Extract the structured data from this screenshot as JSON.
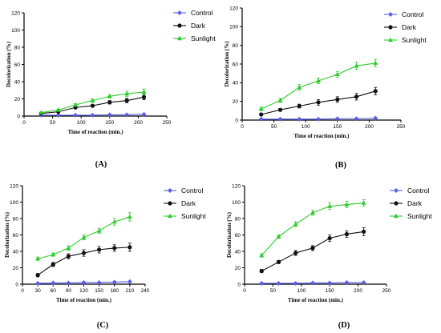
{
  "colors": {
    "control": "#5a5cf0",
    "dark": "#111111",
    "sunlight": "#2ecc2e"
  },
  "chart_data": [
    {
      "type": "line",
      "label": "(A)",
      "xlabel": "Time of reaction (min.)",
      "ylabel": "Decolorization (%)",
      "xlim": [
        0,
        250
      ],
      "ylim": [
        0,
        120
      ],
      "xticks": [
        0,
        50,
        100,
        150,
        200,
        250
      ],
      "yticks": [
        0,
        20,
        40,
        60,
        80,
        100,
        120
      ],
      "x": [
        30,
        60,
        90,
        120,
        150,
        180,
        210
      ],
      "legend_position": "right",
      "series": [
        {
          "name": "Control",
          "values": [
            1,
            1,
            1,
            1,
            1.5,
            1.5,
            2
          ],
          "errors": [
            0.3,
            0.3,
            0.3,
            0.3,
            0.3,
            0.3,
            0.5
          ]
        },
        {
          "name": "Dark",
          "values": [
            3,
            5,
            10,
            12,
            16,
            18,
            22
          ],
          "errors": [
            0.8,
            1,
            1.5,
            1.5,
            2,
            2.5,
            3
          ]
        },
        {
          "name": "Sunlight",
          "values": [
            4,
            7,
            13,
            18,
            23,
            26,
            28
          ],
          "errors": [
            1,
            1,
            1.5,
            2,
            2,
            3,
            3.5
          ]
        }
      ]
    },
    {
      "type": "line",
      "label": "(B)",
      "xlabel": "Time of reaction (min.)",
      "ylabel": "Decolorization (%)",
      "xlim": [
        0,
        250
      ],
      "ylim": [
        0,
        120
      ],
      "xticks": [
        0,
        50,
        100,
        150,
        200,
        250
      ],
      "yticks": [
        0,
        20,
        40,
        60,
        80,
        100,
        120
      ],
      "x": [
        30,
        60,
        90,
        120,
        150,
        180,
        210
      ],
      "legend_position": "right",
      "series": [
        {
          "name": "Control",
          "values": [
            1,
            1,
            1,
            1,
            1.5,
            1.5,
            2
          ],
          "errors": [
            0.3,
            0.3,
            0.3,
            0.3,
            0.3,
            0.3,
            0.5
          ]
        },
        {
          "name": "Dark",
          "values": [
            6,
            11,
            15,
            19,
            22,
            25,
            31
          ],
          "errors": [
            1,
            1.5,
            2,
            3,
            3,
            3.5,
            4
          ]
        },
        {
          "name": "Sunlight",
          "values": [
            12,
            21,
            35,
            42,
            49,
            58,
            61
          ],
          "errors": [
            2,
            2,
            3,
            3,
            3,
            4,
            4
          ]
        }
      ]
    },
    {
      "type": "line",
      "label": "(C)",
      "xlabel": "Time of reaction (min.)",
      "ylabel": "Decolorization (%)",
      "xlim": [
        0,
        240
      ],
      "ylim": [
        0,
        120
      ],
      "xticks": [
        0,
        30,
        60,
        90,
        120,
        150,
        180,
        210,
        240
      ],
      "yticks": [
        0,
        20,
        40,
        60,
        80,
        100,
        120
      ],
      "x": [
        30,
        60,
        90,
        120,
        150,
        180,
        210
      ],
      "legend_position": "right",
      "series": [
        {
          "name": "Control",
          "values": [
            1,
            1.5,
            1.5,
            2,
            2,
            2.5,
            3
          ],
          "errors": [
            0.3,
            0.3,
            0.3,
            0.3,
            0.3,
            0.5,
            0.5
          ]
        },
        {
          "name": "Dark",
          "values": [
            11,
            24,
            34,
            38,
            42,
            44,
            45
          ],
          "errors": [
            2,
            2.5,
            3,
            4,
            4,
            4,
            5
          ]
        },
        {
          "name": "Sunlight",
          "values": [
            31,
            36,
            44,
            57,
            65,
            76,
            82
          ],
          "errors": [
            2,
            2,
            3,
            3,
            3,
            4,
            5
          ]
        }
      ]
    },
    {
      "type": "line",
      "label": "(D)",
      "xlabel": "Time of reaction (min.)",
      "ylabel": "Decolorization (%)",
      "xlim": [
        0,
        250
      ],
      "ylim": [
        0,
        120
      ],
      "xticks": [
        0,
        50,
        100,
        150,
        200,
        250
      ],
      "yticks": [
        0,
        20,
        40,
        60,
        80,
        100,
        120
      ],
      "x": [
        30,
        60,
        90,
        120,
        150,
        180,
        210
      ],
      "legend_position": "right",
      "series": [
        {
          "name": "Control",
          "values": [
            1,
            1,
            1,
            1.5,
            1.5,
            2,
            2
          ],
          "errors": [
            0.3,
            0.3,
            0.3,
            0.3,
            0.3,
            0.3,
            0.5
          ]
        },
        {
          "name": "Dark",
          "values": [
            16,
            27,
            38,
            44,
            56,
            61,
            64
          ],
          "errors": [
            2,
            2,
            3,
            3,
            4,
            4,
            5
          ]
        },
        {
          "name": "Sunlight",
          "values": [
            35,
            58,
            73,
            87,
            95,
            97,
            99
          ],
          "errors": [
            2,
            2,
            3,
            3,
            4,
            4,
            4
          ]
        }
      ]
    }
  ]
}
